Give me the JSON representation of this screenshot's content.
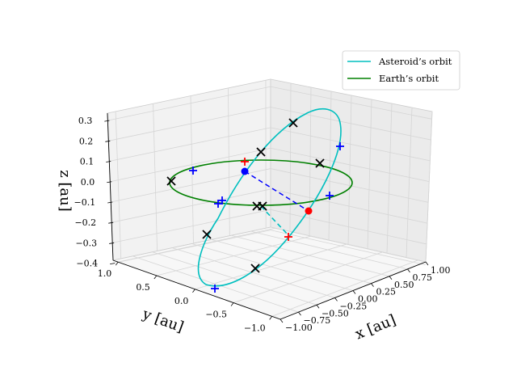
{
  "chart_data": {
    "type": "line",
    "projection": "3d",
    "xlabel": "x [au]",
    "ylabel": "y [au]",
    "zlabel": "z [au]",
    "xlim": [
      -1.0,
      1.0
    ],
    "ylim": [
      -1.0,
      1.0
    ],
    "zlim": [
      -0.4,
      0.3
    ],
    "x_ticks": [
      "−1.00",
      "−0.75",
      "−0.50",
      "−0.25",
      "0.00",
      "0.25",
      "0.50",
      "0.75",
      "1.00"
    ],
    "y_ticks": [
      "1.0",
      "0.5",
      "0.0",
      "−0.5",
      "−1.0"
    ],
    "z_ticks": [
      "0.3",
      "0.2",
      "0.1",
      "0.0",
      "−0.1",
      "−0.2",
      "−0.3",
      "−0.4"
    ],
    "grid": true,
    "legend_position": "top-right",
    "series": [
      {
        "name": "Asteroid’s orbit",
        "color": "#00bfbf",
        "shape": "inclined ellipse",
        "semi_major_axis": 1.0,
        "eccentricity": 0.3,
        "inclination_deg": 30
      },
      {
        "name": "Earth’s orbit",
        "color": "#008000",
        "shape": "circle",
        "radius": 1.0,
        "inclination_deg": 0
      }
    ],
    "markers": {
      "black_x_count": 9,
      "blue_plus_count": 6,
      "red_plus_count": 2,
      "blue_dot_count": 1,
      "red_dot_count": 1
    },
    "dashed_segments": [
      {
        "color": "#0000ff",
        "style": "dashed",
        "description": "blue dot to red dot"
      },
      {
        "color": "#00bfbf",
        "style": "dashed",
        "description": "asteroid orbit below ecliptic"
      }
    ]
  }
}
